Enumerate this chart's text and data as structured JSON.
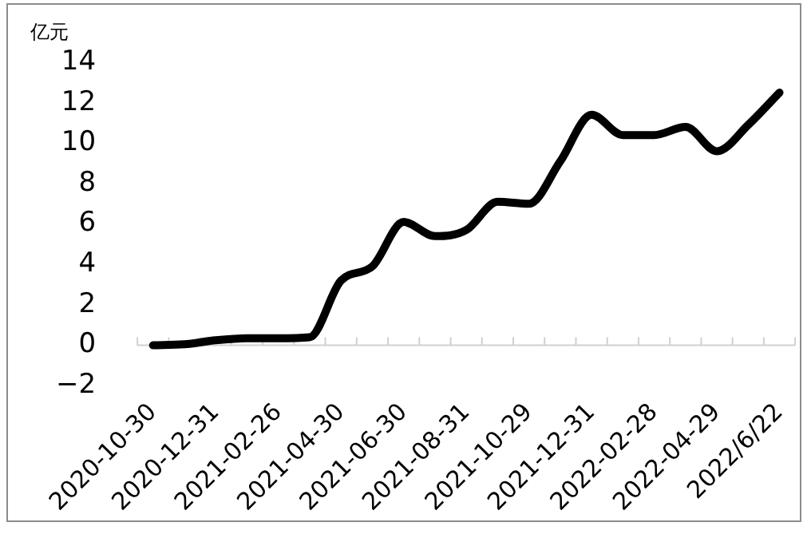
{
  "chart_data": {
    "type": "line",
    "ylabel": "亿元",
    "categories": [
      "2020-10-30",
      null,
      "2020-12-31",
      null,
      "2021-02-26",
      null,
      "2021-04-30",
      null,
      "2021-06-30",
      null,
      "2021-08-31",
      null,
      "2021-10-29",
      null,
      "2021-12-31",
      null,
      "2022-02-28",
      null,
      "2022-04-29",
      null,
      "2022/6/22"
    ],
    "series": [
      {
        "color": "#000000",
        "values": [
          0,
          0.05,
          0.25,
          0.35,
          0.35,
          0.4,
          3.2,
          3.9,
          6.1,
          5.4,
          5.7,
          7.1,
          7.0,
          9.1,
          11.4,
          10.4,
          10.4,
          10.8,
          9.6,
          10.9,
          12.5
        ]
      }
    ],
    "ylim": [
      -2,
      14
    ],
    "yticks": [
      {
        "value": -2,
        "label": "−2"
      },
      0,
      2,
      4,
      6,
      8,
      10,
      12,
      14
    ]
  }
}
